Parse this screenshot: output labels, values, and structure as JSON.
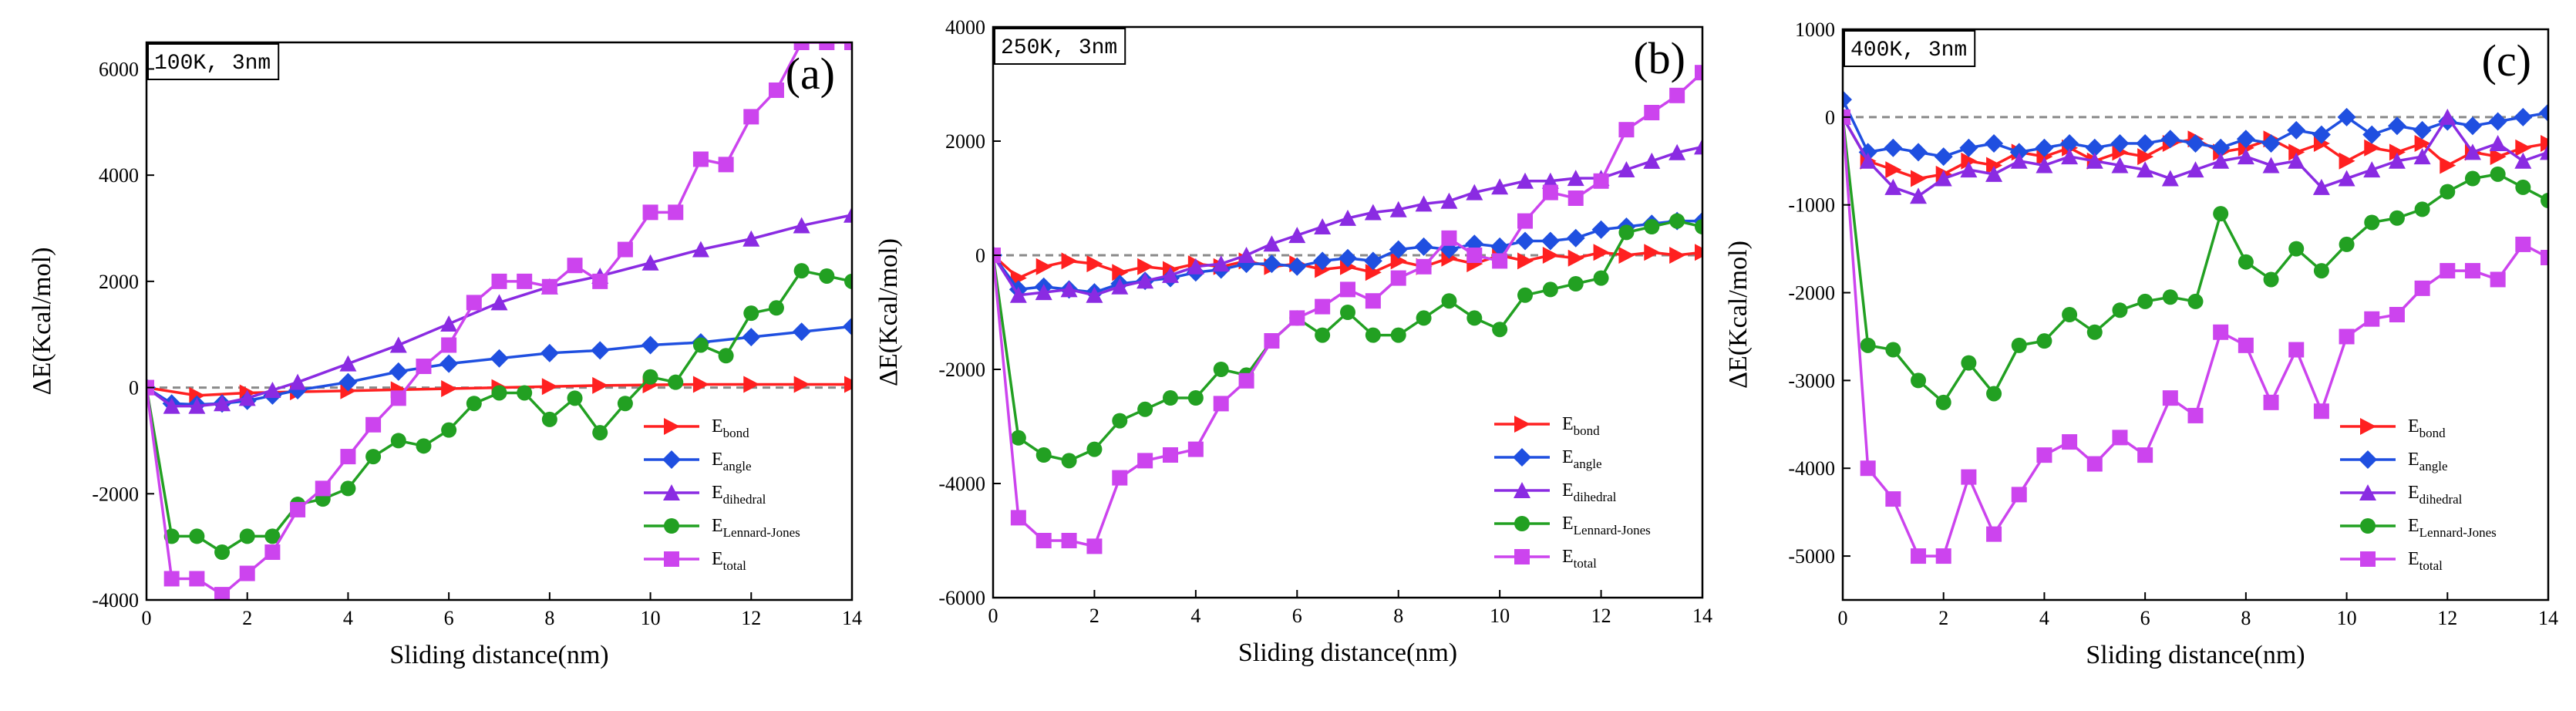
{
  "chart_data": [
    {
      "type": "line",
      "panel_label": "(a)",
      "condition": "100K, 3nm",
      "xlabel": "Sliding distance(nm)",
      "ylabel": "ΔE(Kcal/mol)",
      "xlim": [
        0,
        14
      ],
      "ylim": [
        -4000,
        6500
      ],
      "xticks": [
        0,
        2,
        4,
        6,
        8,
        10,
        12,
        14
      ],
      "yticks": [
        -4000,
        -2000,
        0,
        2000,
        4000,
        6000
      ],
      "reference_line": 0,
      "legend_position": "bottom-right",
      "series": [
        {
          "name": "E",
          "sub": "bond",
          "color": "#ff2020",
          "marker": "triangle-right",
          "x": [
            0,
            1,
            2,
            3,
            4,
            5,
            6,
            7,
            8,
            9,
            10,
            11,
            12,
            13,
            14
          ],
          "y": [
            0,
            -150,
            -100,
            -80,
            -60,
            -40,
            -20,
            0,
            20,
            40,
            50,
            60,
            60,
            60,
            60
          ]
        },
        {
          "name": "E",
          "sub": "angle",
          "color": "#1f4fe0",
          "marker": "diamond",
          "x": [
            0,
            0.5,
            1,
            1.5,
            2,
            2.5,
            3,
            4,
            5,
            6,
            7,
            8,
            9,
            10,
            11,
            12,
            13,
            14
          ],
          "y": [
            0,
            -300,
            -320,
            -300,
            -250,
            -150,
            -50,
            100,
            300,
            450,
            550,
            650,
            700,
            800,
            850,
            950,
            1050,
            1150
          ]
        },
        {
          "name": "E",
          "sub": "dihedral",
          "color": "#8a2be2",
          "marker": "triangle-up",
          "x": [
            0,
            0.5,
            1,
            1.5,
            2,
            2.5,
            3,
            4,
            5,
            6,
            7,
            8,
            9,
            10,
            11,
            12,
            13,
            14
          ],
          "y": [
            0,
            -350,
            -350,
            -300,
            -200,
            -50,
            100,
            450,
            800,
            1200,
            1600,
            1900,
            2100,
            2350,
            2600,
            2800,
            3050,
            3250
          ]
        },
        {
          "name": "E",
          "sub": "Lennard-Jones",
          "color": "#22a022",
          "marker": "circle",
          "x": [
            0,
            0.5,
            1,
            1.5,
            2,
            2.5,
            3,
            3.5,
            4,
            4.5,
            5,
            5.5,
            6,
            6.5,
            7,
            7.5,
            8,
            8.5,
            9,
            9.5,
            10,
            10.5,
            11,
            11.5,
            12,
            12.5,
            13,
            13.5,
            14
          ],
          "y": [
            0,
            -2800,
            -2800,
            -3100,
            -2800,
            -2800,
            -2200,
            -2100,
            -1900,
            -1300,
            -1000,
            -1100,
            -800,
            -300,
            -100,
            -100,
            -600,
            -200,
            -850,
            -300,
            200,
            100,
            800,
            600,
            1400,
            1500,
            2200,
            2100,
            2000
          ]
        },
        {
          "name": "E",
          "sub": "total",
          "color": "#cc44ee",
          "marker": "square",
          "x": [
            0,
            0.5,
            1,
            1.5,
            2,
            2.5,
            3,
            3.5,
            4,
            4.5,
            5,
            5.5,
            6,
            6.5,
            7,
            7.5,
            8,
            8.5,
            9,
            9.5,
            10,
            10.5,
            11,
            11.5,
            12,
            12.5,
            13,
            13.5,
            14
          ],
          "y": [
            0,
            -3600,
            -3600,
            -3900,
            -3500,
            -3100,
            -2300,
            -1900,
            -1300,
            -700,
            -200,
            400,
            800,
            1600,
            2000,
            2000,
            1900,
            2300,
            2000,
            2600,
            3300,
            3300,
            4300,
            4200,
            5100,
            5600,
            6500,
            6500,
            6500
          ]
        }
      ]
    },
    {
      "type": "line",
      "panel_label": "(b)",
      "condition": "250K, 3nm",
      "xlabel": "Sliding distance(nm)",
      "ylabel": "ΔE(Kcal/mol)",
      "xlim": [
        0,
        14
      ],
      "ylim": [
        -6000,
        4000
      ],
      "xticks": [
        0,
        2,
        4,
        6,
        8,
        10,
        12,
        14
      ],
      "yticks": [
        -6000,
        -4000,
        -2000,
        0,
        2000,
        4000
      ],
      "reference_line": 0,
      "legend_position": "bottom-right",
      "series": [
        {
          "name": "E",
          "sub": "bond",
          "color": "#ff2020",
          "marker": "triangle-right",
          "x": [
            0,
            0.5,
            1,
            1.5,
            2,
            2.5,
            3,
            3.5,
            4,
            4.5,
            5,
            5.5,
            6,
            6.5,
            7,
            7.5,
            8,
            8.5,
            9,
            9.5,
            10,
            10.5,
            11,
            11.5,
            12,
            12.5,
            13,
            13.5,
            14
          ],
          "y": [
            0,
            -400,
            -200,
            -100,
            -150,
            -300,
            -200,
            -250,
            -150,
            -200,
            -100,
            -200,
            -150,
            -250,
            -200,
            -300,
            -100,
            -200,
            -50,
            -150,
            0,
            -100,
            0,
            -50,
            50,
            0,
            50,
            0,
            50
          ]
        },
        {
          "name": "E",
          "sub": "angle",
          "color": "#1f4fe0",
          "marker": "diamond",
          "x": [
            0,
            0.5,
            1,
            1.5,
            2,
            2.5,
            3,
            3.5,
            4,
            4.5,
            5,
            5.5,
            6,
            6.5,
            7,
            7.5,
            8,
            8.5,
            9,
            9.5,
            10,
            10.5,
            11,
            11.5,
            12,
            12.5,
            13,
            13.5,
            14
          ],
          "y": [
            0,
            -600,
            -550,
            -600,
            -650,
            -500,
            -450,
            -400,
            -300,
            -250,
            -150,
            -150,
            -200,
            -100,
            -50,
            -100,
            100,
            150,
            100,
            200,
            150,
            250,
            250,
            300,
            450,
            500,
            550,
            600,
            600
          ]
        },
        {
          "name": "E",
          "sub": "dihedral",
          "color": "#8a2be2",
          "marker": "triangle-up",
          "x": [
            0,
            0.5,
            1,
            1.5,
            2,
            2.5,
            3,
            3.5,
            4,
            4.5,
            5,
            5.5,
            6,
            6.5,
            7,
            7.5,
            8,
            8.5,
            9,
            9.5,
            10,
            10.5,
            11,
            11.5,
            12,
            12.5,
            13,
            13.5,
            14
          ],
          "y": [
            0,
            -700,
            -650,
            -600,
            -700,
            -550,
            -450,
            -350,
            -200,
            -150,
            0,
            200,
            350,
            500,
            650,
            750,
            800,
            900,
            950,
            1100,
            1200,
            1300,
            1300,
            1350,
            1350,
            1500,
            1650,
            1800,
            1900
          ]
        },
        {
          "name": "E",
          "sub": "Lennard-Jones",
          "color": "#22a022",
          "marker": "circle",
          "x": [
            0,
            0.5,
            1,
            1.5,
            2,
            2.5,
            3,
            3.5,
            4,
            4.5,
            5,
            5.5,
            6,
            6.5,
            7,
            7.5,
            8,
            8.5,
            9,
            9.5,
            10,
            10.5,
            11,
            11.5,
            12,
            12.5,
            13,
            13.5,
            14
          ],
          "y": [
            0,
            -3200,
            -3500,
            -3600,
            -3400,
            -2900,
            -2700,
            -2500,
            -2500,
            -2000,
            -2100,
            -1500,
            -1100,
            -1400,
            -1000,
            -1400,
            -1400,
            -1100,
            -800,
            -1100,
            -1300,
            -700,
            -600,
            -500,
            -400,
            400,
            500,
            600,
            500
          ]
        },
        {
          "name": "E",
          "sub": "total",
          "color": "#cc44ee",
          "marker": "square",
          "x": [
            0,
            0.5,
            1,
            1.5,
            2,
            2.5,
            3,
            3.5,
            4,
            4.5,
            5,
            5.5,
            6,
            6.5,
            7,
            7.5,
            8,
            8.5,
            9,
            9.5,
            10,
            10.5,
            11,
            11.5,
            12,
            12.5,
            13,
            13.5,
            14
          ],
          "y": [
            0,
            -4600,
            -5000,
            -5000,
            -5100,
            -3900,
            -3600,
            -3500,
            -3400,
            -2600,
            -2200,
            -1500,
            -1100,
            -900,
            -600,
            -800,
            -400,
            -200,
            300,
            0,
            -100,
            600,
            1100,
            1000,
            1300,
            2200,
            2500,
            2800,
            3200
          ]
        }
      ]
    },
    {
      "type": "line",
      "panel_label": "(c)",
      "condition": "400K, 3nm",
      "xlabel": "Sliding distance(nm)",
      "ylabel": "ΔE(Kcal/mol)",
      "xlim": [
        0,
        14
      ],
      "ylim": [
        -5500,
        1000
      ],
      "xticks": [
        0,
        2,
        4,
        6,
        8,
        10,
        12,
        14
      ],
      "yticks": [
        -5000,
        -4000,
        -3000,
        -2000,
        -1000,
        0,
        1000
      ],
      "reference_line": 0,
      "legend_position": "bottom-right",
      "series": [
        {
          "name": "E",
          "sub": "bond",
          "color": "#ff2020",
          "marker": "triangle-right",
          "x": [
            0,
            0.5,
            1,
            1.5,
            2,
            2.5,
            3,
            3.5,
            4,
            4.5,
            5,
            5.5,
            6,
            6.5,
            7,
            7.5,
            8,
            8.5,
            9,
            9.5,
            10,
            10.5,
            11,
            11.5,
            12,
            12.5,
            13,
            13.5,
            14
          ],
          "y": [
            0,
            -500,
            -600,
            -700,
            -650,
            -500,
            -550,
            -400,
            -450,
            -350,
            -500,
            -400,
            -450,
            -300,
            -250,
            -400,
            -350,
            -250,
            -400,
            -300,
            -500,
            -350,
            -400,
            -300,
            -550,
            -400,
            -450,
            -350,
            -300
          ]
        },
        {
          "name": "E",
          "sub": "angle",
          "color": "#1f4fe0",
          "marker": "diamond",
          "x": [
            0,
            0.5,
            1,
            1.5,
            2,
            2.5,
            3,
            3.5,
            4,
            4.5,
            5,
            5.5,
            6,
            6.5,
            7,
            7.5,
            8,
            8.5,
            9,
            9.5,
            10,
            10.5,
            11,
            11.5,
            12,
            12.5,
            13,
            13.5,
            14
          ],
          "y": [
            200,
            -400,
            -350,
            -400,
            -450,
            -350,
            -300,
            -400,
            -350,
            -300,
            -350,
            -300,
            -300,
            -250,
            -300,
            -350,
            -250,
            -300,
            -150,
            -200,
            0,
            -200,
            -100,
            -150,
            -50,
            -100,
            -50,
            0,
            50
          ]
        },
        {
          "name": "E",
          "sub": "dihedral",
          "color": "#8a2be2",
          "marker": "triangle-up",
          "x": [
            0,
            0.5,
            1,
            1.5,
            2,
            2.5,
            3,
            3.5,
            4,
            4.5,
            5,
            5.5,
            6,
            6.5,
            7,
            7.5,
            8,
            8.5,
            9,
            9.5,
            10,
            10.5,
            11,
            11.5,
            12,
            12.5,
            13,
            13.5,
            14
          ],
          "y": [
            0,
            -500,
            -800,
            -900,
            -700,
            -600,
            -650,
            -500,
            -550,
            -450,
            -500,
            -550,
            -600,
            -700,
            -600,
            -500,
            -450,
            -550,
            -500,
            -800,
            -700,
            -600,
            -500,
            -450,
            0,
            -400,
            -300,
            -500,
            -400
          ]
        },
        {
          "name": "E",
          "sub": "Lennard-Jones",
          "color": "#22a022",
          "marker": "circle",
          "x": [
            0,
            0.5,
            1,
            1.5,
            2,
            2.5,
            3,
            3.5,
            4,
            4.5,
            5,
            5.5,
            6,
            6.5,
            7,
            7.5,
            8,
            8.5,
            9,
            9.5,
            10,
            10.5,
            11,
            11.5,
            12,
            12.5,
            13,
            13.5,
            14
          ],
          "y": [
            0,
            -2600,
            -2650,
            -3000,
            -3250,
            -2800,
            -3150,
            -2600,
            -2550,
            -2250,
            -2450,
            -2200,
            -2100,
            -2050,
            -2100,
            -1100,
            -1650,
            -1850,
            -1500,
            -1750,
            -1450,
            -1200,
            -1150,
            -1050,
            -850,
            -700,
            -650,
            -800,
            -950
          ]
        },
        {
          "name": "E",
          "sub": "total",
          "color": "#cc44ee",
          "marker": "square",
          "x": [
            0,
            0.5,
            1,
            1.5,
            2,
            2.5,
            3,
            3.5,
            4,
            4.5,
            5,
            5.5,
            6,
            6.5,
            7,
            7.5,
            8,
            8.5,
            9,
            9.5,
            10,
            10.5,
            11,
            11.5,
            12,
            12.5,
            13,
            13.5,
            14
          ],
          "y": [
            0,
            -4000,
            -4350,
            -5000,
            -5000,
            -4100,
            -4750,
            -4300,
            -3850,
            -3700,
            -3950,
            -3650,
            -3850,
            -3200,
            -3400,
            -2450,
            -2600,
            -3250,
            -2650,
            -3350,
            -2500,
            -2300,
            -2250,
            -1950,
            -1750,
            -1750,
            -1850,
            -1450,
            -1600
          ]
        }
      ]
    }
  ]
}
